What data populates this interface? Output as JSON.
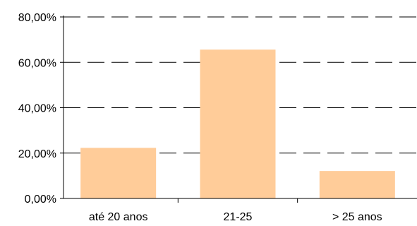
{
  "chart_data": {
    "type": "bar",
    "categories": [
      "até 20 anos",
      "21-25",
      "> 25 anos"
    ],
    "values": [
      22.3,
      65.6,
      12.1
    ],
    "ylim": [
      0,
      80
    ],
    "yticks": [
      0,
      20,
      40,
      60,
      80
    ],
    "ytick_labels": [
      "0,00%",
      "20,00%",
      "40,00%",
      "60,00%",
      "80,00%"
    ],
    "grid": true,
    "grid_style": "dashed",
    "legend": "none",
    "bar_color": "#FFCC99"
  }
}
